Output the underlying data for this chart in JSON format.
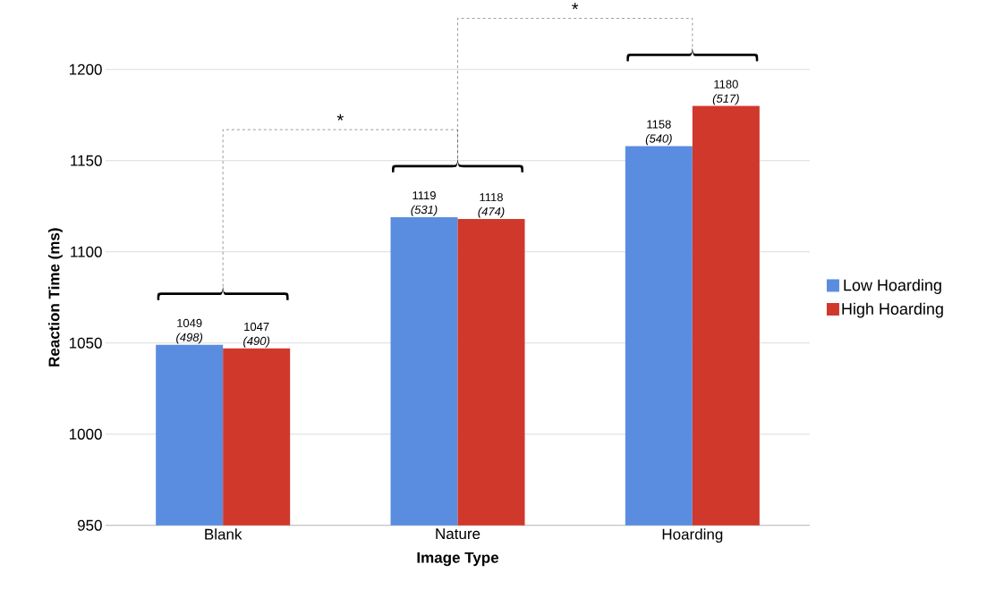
{
  "chart_data": {
    "type": "bar",
    "xlabel": "Image Type",
    "ylabel": "Reaction Time (ms)",
    "categories": [
      "Blank",
      "Nature",
      "Hoarding"
    ],
    "series": [
      {
        "name": "Low Hoarding",
        "color": "#5a8de0",
        "values": [
          1049,
          1119,
          1158
        ],
        "value_labels": [
          "1049 *(498)*",
          "1119 *(531)*",
          "1158 *(540)*"
        ]
      },
      {
        "name": "High Hoarding",
        "color": "#d0382c",
        "values": [
          1047,
          1118,
          1180
        ],
        "value_labels": [
          "1047 *(490)*",
          "1118 *(474)*",
          "1180 *(517)*"
        ]
      }
    ],
    "ylim": [
      950,
      1200
    ],
    "yticks": [
      950,
      1000,
      1050,
      1100,
      1150,
      1200
    ],
    "grid": "y",
    "legend": "right",
    "annotations": [
      "*",
      "*"
    ]
  }
}
